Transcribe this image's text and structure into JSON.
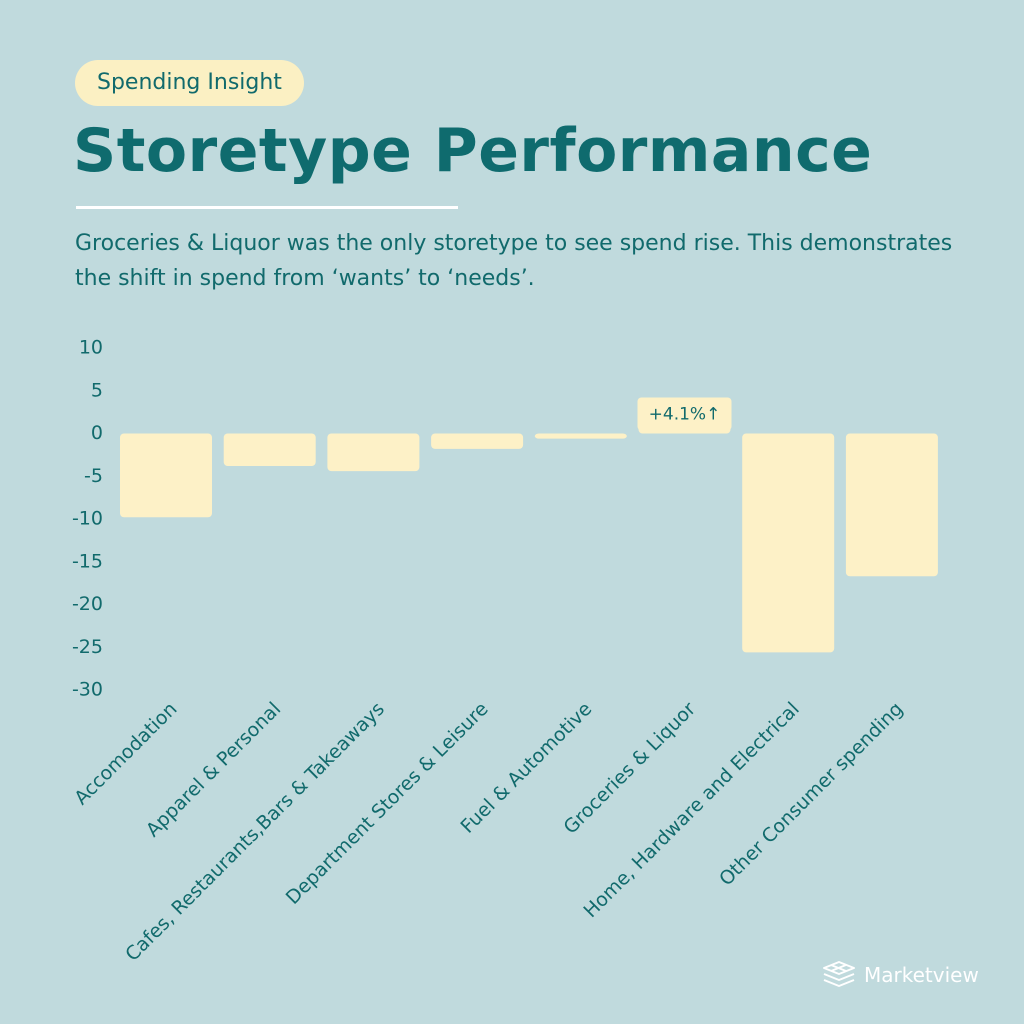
{
  "header": {
    "badge": "Spending Insight",
    "title": "Storetype Performance",
    "subtitle": "Groceries & Liquor was the only storetype to see spend rise. This demonstrates the shift in spend from ‘wants’ to ‘needs’."
  },
  "chart_data": {
    "type": "bar",
    "categories": [
      "Accomodation",
      "Apparel & Personal",
      "Cafes, Restaurants,Bars & Takeaways",
      "Department Stores & Leisure",
      "Fuel & Automotive",
      "Groceries & Liquor",
      "Home, Hardware and Electrical",
      "Other Consumer spending"
    ],
    "values": [
      -9.8,
      -3.8,
      -4.4,
      -1.8,
      -0.6,
      4.1,
      -25.6,
      -16.7
    ],
    "ylim": [
      -30,
      10
    ],
    "yticks": [
      10,
      5,
      0,
      -5,
      -10,
      -15,
      -20,
      -25,
      -30
    ],
    "ytick_labels": [
      "10",
      "5",
      "0",
      "-5",
      "-10",
      "-15",
      "-20",
      "-25",
      "-30"
    ],
    "annotations": [
      {
        "category": "Groceries & Liquor",
        "text": "+4.1%↑"
      }
    ],
    "grid": false,
    "legend": "none",
    "colors": {
      "bar": "#fdf1c7",
      "text": "#116a6c",
      "background": "#c0dadd"
    }
  },
  "brand": {
    "name": "Marketview",
    "icon": "layers-logo-icon"
  }
}
